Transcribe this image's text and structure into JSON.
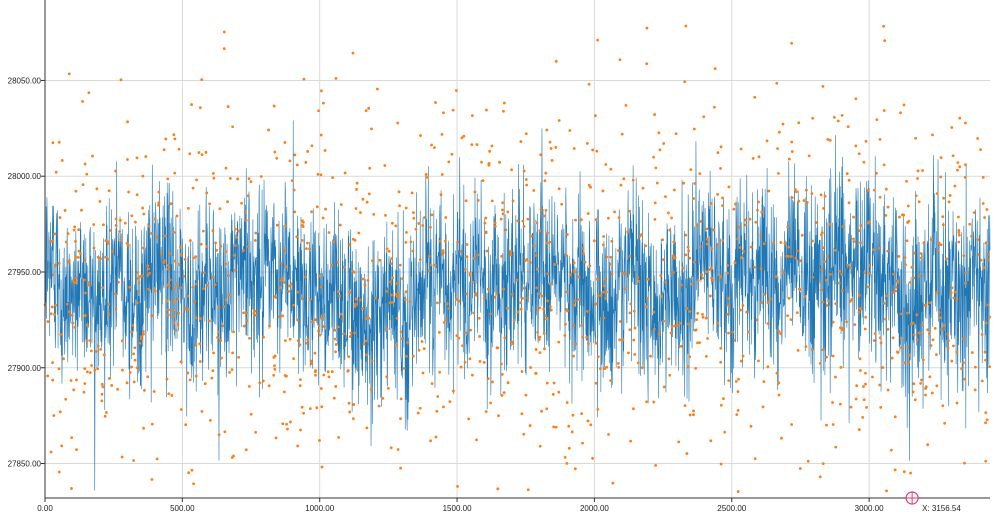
{
  "chart_data": {
    "type": "line",
    "title": "",
    "xlabel": "",
    "ylabel": "",
    "xlim": [
      0,
      3440
    ],
    "ylim": [
      27832,
      28092
    ],
    "x_ticks": [
      "0.00",
      "500.00",
      "1000.00",
      "1500.00",
      "2000.00",
      "2500.00",
      "3000.00"
    ],
    "x_tick_values": [
      0,
      500,
      1000,
      1500,
      2000,
      2500,
      3000
    ],
    "y_ticks": [
      "27850.00",
      "27900.00",
      "27950.00",
      "28000.00",
      "28050.00"
    ],
    "y_tick_values": [
      27850,
      27900,
      27950,
      28000,
      28050
    ],
    "grid": true,
    "series": [
      {
        "kind": "line",
        "color": "#1f77b4",
        "x_start": 0,
        "x_end": 3440,
        "center": 27945,
        "spread": 30
      },
      {
        "kind": "scatter",
        "color": "#ff7f0e",
        "x_start": 0,
        "x_end": 3440,
        "center": 27945,
        "spread": 48
      }
    ],
    "cursor": {
      "x_value": 3156.54,
      "label": "X: 3156.54",
      "color": "#d94070"
    }
  }
}
